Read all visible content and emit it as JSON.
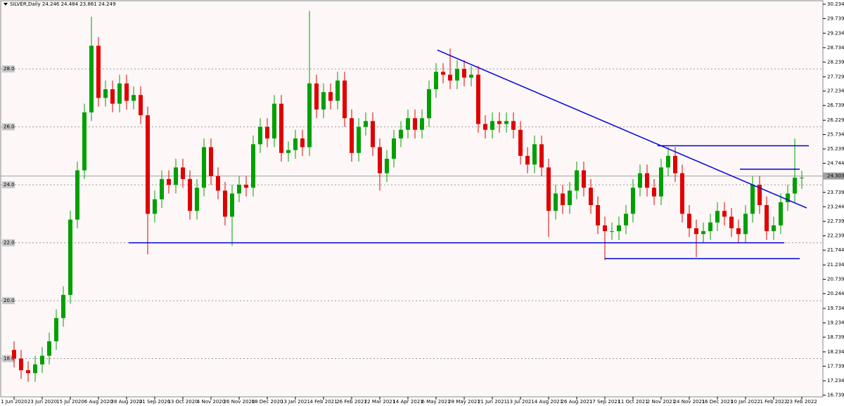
{
  "chart_data": {
    "type": "candlestick",
    "title": "SILVER,Daily  24.246 24.484 23.861 24.249",
    "categories": [
      "1 Jun 2020",
      null,
      null,
      null,
      "23 Jun 2020",
      null,
      null,
      null,
      "15 Jul 2020",
      null,
      null,
      null,
      "6 Aug 2020",
      null,
      null,
      null,
      "28 Aug 2020",
      null,
      null,
      null,
      "21 Sep 2020",
      null,
      null,
      null,
      "13 Oct 2020",
      null,
      null,
      null,
      "4 Nov 2020",
      null,
      null,
      null,
      "26 Nov 2020",
      null,
      null,
      null,
      "18 Dec 2020",
      null,
      null,
      null,
      "13 Jan 2021",
      null,
      null,
      null,
      "4 Feb 2021",
      null,
      null,
      null,
      "26 Feb 2021",
      null,
      null,
      null,
      "22 Mar 2021",
      null,
      null,
      null,
      "14 Apr 2021",
      null,
      null,
      null,
      "6 May 2021",
      null,
      null,
      null,
      "28 May 2021",
      null,
      null,
      null,
      "21 Jun 2021",
      null,
      null,
      null,
      "13 Jul 2021",
      null,
      null,
      null,
      "4 Aug 2021",
      null,
      null,
      null,
      "26 Aug 2021",
      null,
      null,
      null,
      "17 Sep 2021",
      null,
      null,
      null,
      "11 Oct 2021",
      null,
      null,
      null,
      "2 Nov 2021",
      null,
      null,
      null,
      "24 Nov 2021",
      null,
      null,
      null,
      "16 Dec 2021",
      null,
      null,
      null,
      "10 Jan 2022",
      null,
      null,
      null,
      "1 Feb 2022",
      null,
      null,
      null,
      "23 Feb 2022"
    ],
    "open": [
      18.3,
      18.0,
      17.6,
      17.5,
      17.8,
      18.1,
      18.6,
      19.4,
      20.2,
      22.8,
      24.5,
      26.5,
      28.8,
      27.0,
      27.3,
      26.8,
      27.5,
      26.9,
      27.1,
      26.4,
      23.0,
      23.5,
      24.2,
      24.0,
      24.6,
      24.2,
      23.1,
      23.9,
      25.3,
      24.3,
      23.8,
      22.9,
      23.7,
      24.0,
      23.9,
      25.4,
      26.0,
      25.6,
      26.8,
      25.1,
      25.2,
      25.6,
      25.3,
      27.5,
      26.6,
      27.2,
      26.9,
      27.6,
      26.3,
      25.1,
      26.0,
      26.2,
      25.3,
      24.4,
      24.9,
      25.6,
      25.9,
      26.3,
      25.9,
      26.3,
      27.3,
      27.9,
      27.8,
      27.6,
      28.0,
      27.7,
      27.8,
      26.1,
      25.9,
      26.2,
      26.1,
      26.2,
      25.9,
      25.0,
      24.7,
      25.4,
      24.6,
      23.1,
      23.7,
      23.3,
      23.8,
      24.5,
      23.9,
      23.3,
      22.6,
      22.4,
      22.4,
      22.6,
      23.0,
      23.9,
      24.4,
      23.9,
      23.6,
      24.6,
      25.0,
      24.4,
      23.0,
      22.5,
      22.3,
      22.4,
      22.7,
      23.1,
      22.9,
      22.5,
      22.3,
      23.0,
      24.0,
      23.3,
      22.4,
      22.6,
      23.4,
      23.7,
      24.246
    ],
    "high": [
      18.6,
      18.3,
      17.9,
      18.1,
      18.4,
      18.9,
      19.7,
      20.5,
      23.1,
      24.8,
      26.8,
      29.8,
      29.1,
      27.6,
      27.6,
      27.8,
      27.8,
      27.4,
      27.4,
      26.7,
      23.8,
      24.5,
      24.5,
      24.9,
      24.9,
      24.5,
      24.2,
      25.6,
      25.6,
      24.6,
      24.1,
      24.0,
      24.3,
      24.3,
      25.7,
      26.3,
      26.3,
      27.1,
      27.1,
      25.5,
      25.9,
      25.9,
      30.0,
      27.8,
      27.5,
      27.5,
      27.9,
      27.9,
      26.6,
      26.3,
      26.5,
      26.5,
      25.6,
      25.2,
      25.9,
      26.2,
      26.6,
      26.6,
      26.6,
      27.6,
      28.2,
      28.2,
      28.7,
      28.3,
      28.3,
      28.1,
      28.1,
      26.4,
      26.5,
      26.5,
      26.5,
      26.5,
      26.2,
      25.3,
      25.7,
      25.7,
      24.9,
      24.0,
      24.0,
      24.1,
      24.8,
      24.8,
      24.2,
      23.6,
      22.9,
      22.7,
      22.9,
      23.3,
      24.2,
      24.7,
      24.7,
      24.2,
      24.9,
      25.3,
      25.3,
      24.7,
      23.3,
      22.8,
      22.7,
      23.0,
      23.4,
      23.4,
      23.2,
      22.8,
      23.3,
      24.3,
      24.3,
      23.6,
      22.9,
      23.7,
      24.0,
      25.6,
      24.484
    ],
    "low": [
      17.7,
      17.3,
      17.2,
      17.2,
      17.5,
      17.8,
      18.3,
      19.1,
      19.9,
      22.5,
      24.2,
      26.2,
      26.7,
      26.7,
      26.5,
      26.5,
      26.6,
      26.6,
      26.1,
      21.6,
      22.7,
      23.2,
      23.7,
      23.7,
      23.9,
      22.8,
      22.8,
      23.6,
      24.0,
      23.5,
      22.6,
      21.9,
      23.4,
      23.6,
      23.6,
      25.1,
      25.3,
      25.3,
      24.8,
      24.8,
      24.9,
      25.0,
      25.0,
      26.3,
      26.3,
      26.6,
      26.6,
      26.0,
      24.8,
      24.8,
      25.7,
      25.0,
      23.8,
      24.1,
      24.6,
      25.3,
      25.6,
      25.6,
      25.6,
      26.0,
      27.0,
      27.5,
      27.3,
      27.3,
      27.4,
      27.4,
      25.8,
      25.6,
      25.6,
      25.8,
      25.8,
      25.6,
      24.7,
      24.4,
      24.4,
      24.3,
      22.2,
      22.8,
      23.0,
      23.0,
      23.5,
      23.6,
      23.0,
      22.3,
      21.4,
      22.1,
      22.1,
      22.3,
      22.7,
      23.6,
      23.6,
      23.3,
      23.3,
      24.3,
      24.1,
      22.7,
      22.2,
      21.5,
      22.0,
      22.1,
      22.4,
      22.6,
      22.2,
      22.0,
      22.0,
      22.7,
      23.0,
      22.1,
      22.1,
      22.3,
      23.1,
      23.4,
      23.861
    ],
    "close": [
      18.0,
      17.6,
      17.5,
      17.8,
      18.1,
      18.6,
      19.4,
      20.2,
      22.8,
      24.5,
      26.5,
      28.8,
      27.0,
      27.3,
      26.8,
      27.5,
      26.9,
      27.1,
      26.4,
      23.0,
      23.5,
      24.2,
      24.0,
      24.6,
      24.2,
      23.1,
      23.9,
      25.3,
      24.3,
      23.8,
      22.9,
      23.7,
      24.0,
      23.9,
      25.4,
      26.0,
      25.6,
      26.8,
      25.1,
      25.2,
      25.6,
      25.3,
      27.5,
      26.6,
      27.2,
      26.9,
      27.6,
      26.3,
      25.1,
      26.0,
      26.2,
      25.3,
      24.4,
      24.9,
      25.6,
      25.9,
      26.3,
      25.9,
      26.3,
      27.3,
      27.9,
      27.8,
      27.6,
      28.0,
      27.7,
      27.8,
      26.1,
      25.9,
      26.2,
      26.1,
      26.2,
      25.9,
      25.0,
      24.7,
      25.4,
      24.6,
      23.1,
      23.7,
      23.3,
      23.8,
      24.5,
      23.9,
      23.3,
      22.6,
      22.4,
      22.4,
      22.6,
      23.0,
      23.9,
      24.4,
      23.9,
      23.6,
      24.6,
      25.0,
      24.4,
      23.0,
      22.5,
      22.3,
      22.4,
      22.7,
      23.1,
      22.9,
      22.5,
      22.3,
      23.0,
      24.0,
      23.3,
      22.4,
      22.6,
      23.4,
      23.7,
      24.246,
      24.249
    ],
    "up_color": "#00a000",
    "down_color": "#e00000",
    "line_color": "#0000e0",
    "ylim": [
      16.68,
      30.38
    ],
    "yticks": [
      30.234,
      29.739,
      29.234,
      28.734,
      28.239,
      27.729,
      27.234,
      26.739,
      26.229,
      25.734,
      25.239,
      24.744,
      23.739,
      23.244,
      22.739,
      22.239,
      21.744,
      21.234,
      20.739,
      20.244,
      19.734,
      19.234,
      18.739,
      18.234,
      17.739,
      17.234,
      16.739
    ],
    "levels": [
      {
        "value": 28,
        "label": "28.0"
      },
      {
        "value": 26,
        "label": "26.0"
      },
      {
        "value": 24,
        "label": "24.0"
      },
      {
        "value": 22,
        "label": "22.0"
      },
      {
        "value": 20,
        "label": "20.0"
      },
      {
        "value": 18,
        "label": "18.0"
      }
    ],
    "bid": 24.303,
    "lines": [
      {
        "from": [
          16.3,
          22.0
        ],
        "to": [
          109.5,
          22.0
        ]
      },
      {
        "from": [
          84,
          21.45
        ],
        "to": [
          111.7,
          21.45
        ]
      },
      {
        "from": [
          91.5,
          25.35
        ],
        "to": [
          113,
          25.35
        ]
      },
      {
        "from": [
          103.2,
          24.54
        ],
        "to": [
          111.7,
          24.54
        ]
      },
      {
        "from": [
          60.2,
          28.65
        ],
        "to": [
          112.7,
          23.2
        ]
      }
    ]
  }
}
